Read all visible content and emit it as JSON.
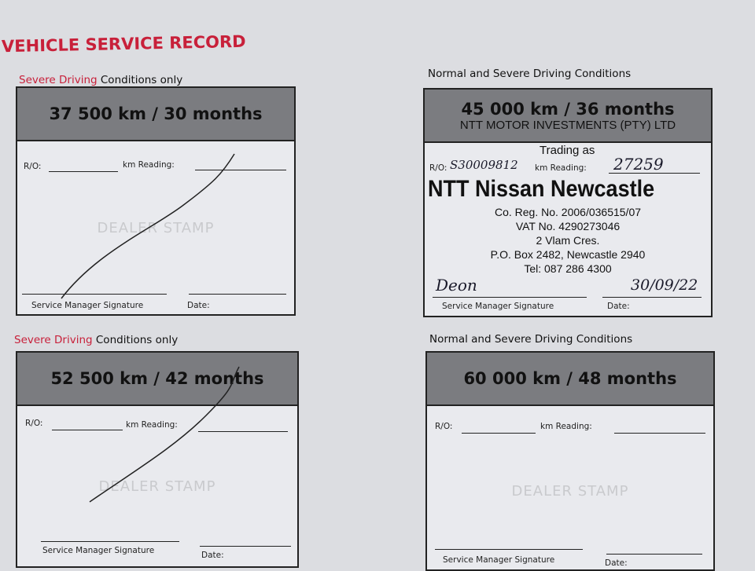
{
  "title": "VEHICLE SERVICE RECORD",
  "labels": {
    "ro": "R/O:",
    "km": "km Reading:",
    "sig": "Service Manager Signature",
    "date": "Date:",
    "dealer_stamp": "DEALER STAMP"
  },
  "cards": [
    {
      "caption_red": "Severe Driving",
      "caption_rest": " Conditions only",
      "interval": "37 500 km / 30 months"
    },
    {
      "caption_red": "",
      "caption_rest": "Normal and Severe Driving Conditions",
      "interval": "45 000 km / 36 months"
    },
    {
      "caption_red": "Severe Driving",
      "caption_rest": " Conditions only",
      "interval": "52 500 km / 42 months"
    },
    {
      "caption_red": "",
      "caption_rest": "Normal and Severe Driving Conditions",
      "interval": "60 000 km / 48 months"
    }
  ],
  "stamp": {
    "company": "NTT MOTOR INVESTMENTS (PTY) LTD",
    "trading": "Trading as",
    "name": "NTT Nissan Newcastle",
    "reg": "Co. Reg. No. 2006/036515/07",
    "vat": "VAT No. 4290273046",
    "street": "2 Vlam Cres.",
    "box": "P.O. Box 2482, Newcastle 2940",
    "tel": "Tel: 087 286 4300"
  },
  "handwritten": {
    "ro": "S30009812",
    "km": "27259",
    "signature": "Deon",
    "date": "30/09/22"
  },
  "colors": {
    "accent": "#c8203a",
    "header": "#7b7c80"
  }
}
